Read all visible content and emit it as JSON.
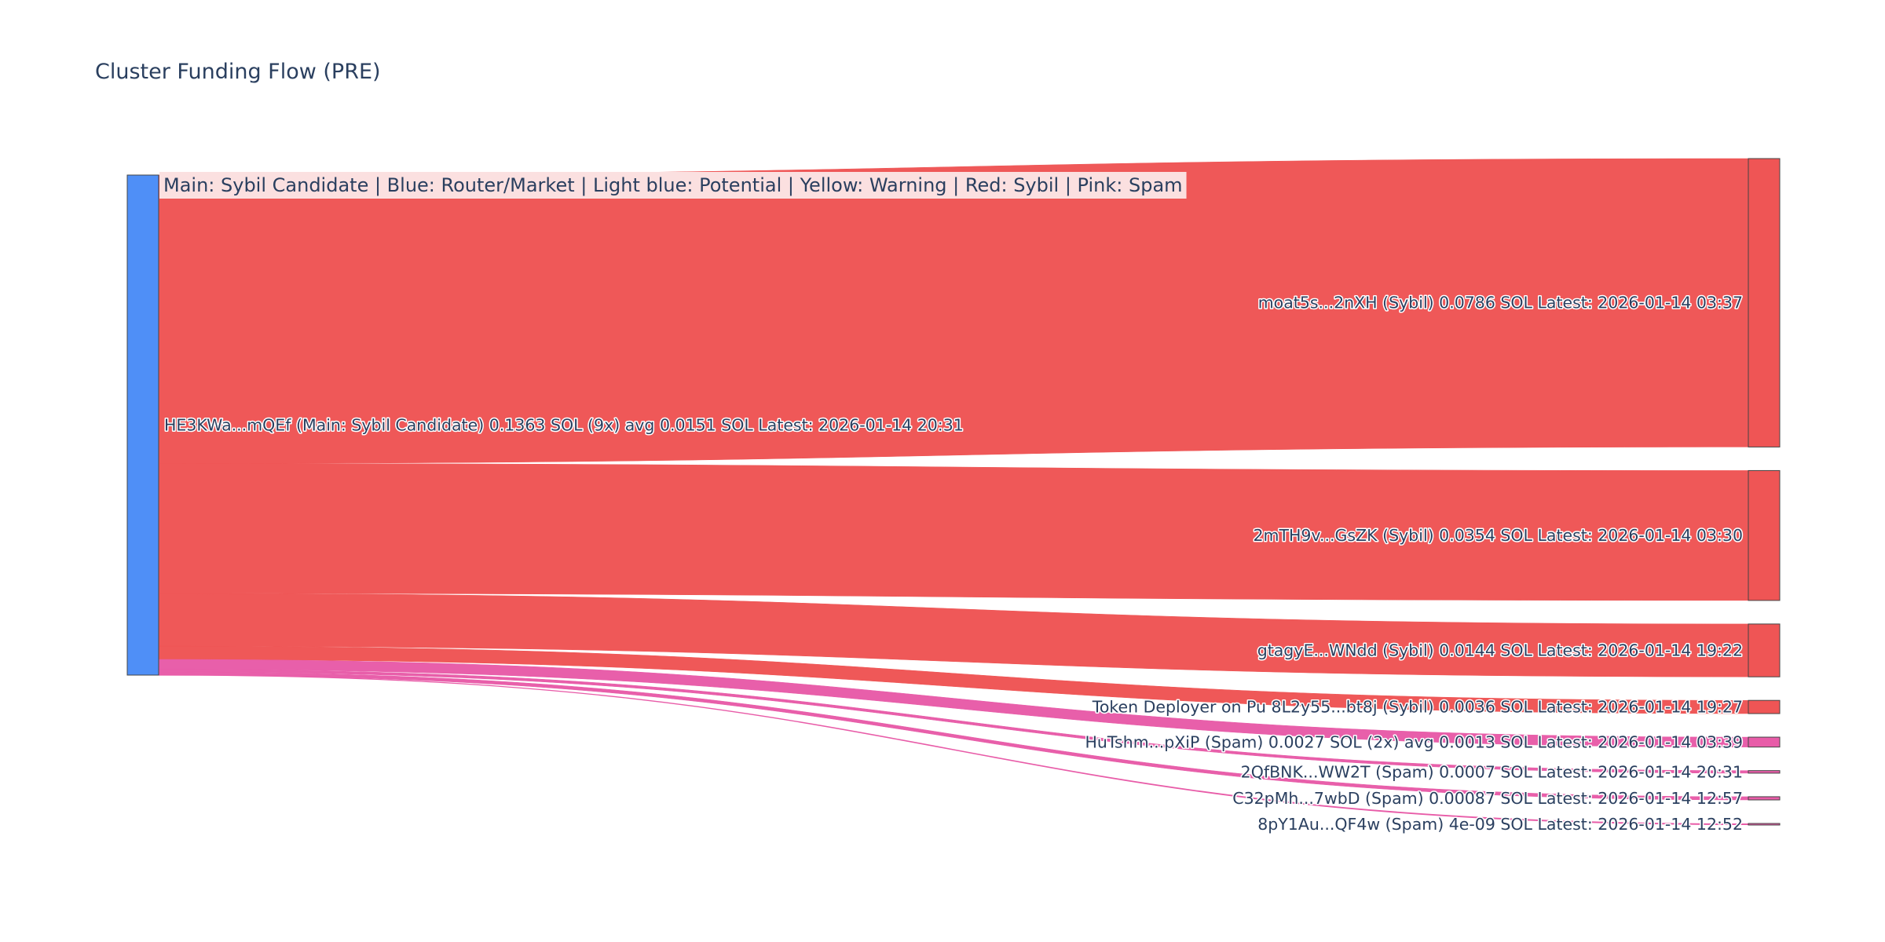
{
  "chart_data": {
    "type": "sankey",
    "title": "Cluster Funding Flow (PRE)",
    "annotation": "Main: Sybil Candidate  |  Blue: Router/Market | Light blue: Potential | Yellow: Warning | Red: Sybil | Pink: Spam",
    "colors": {
      "main": "#4f8ff7",
      "sybil": "#ef5555",
      "spam": "#e85ca8",
      "annotation_bg": "#fbe0e0"
    },
    "source": {
      "label": "HE3KWa...mQEf (Main: Sybil Candidate) 0.1363 SOL (9x) avg 0.0151 SOL Latest: 2026-01-14 20:31",
      "category": "main"
    },
    "targets": [
      {
        "label": "moat5s...2nXH (Sybil) 0.0786 SOL Latest: 2026-01-14 03:37",
        "value": 0.0786,
        "category": "sybil"
      },
      {
        "label": "2mTH9v...GsZK (Sybil) 0.0354 SOL Latest: 2026-01-14 03:30",
        "value": 0.0354,
        "category": "sybil"
      },
      {
        "label": "gtagyE...WNdd (Sybil) 0.0144 SOL Latest: 2026-01-14 19:22",
        "value": 0.0144,
        "category": "sybil"
      },
      {
        "label": "Token Deployer on Pu 8L2y55...bt8j (Sybil) 0.0036 SOL Latest: 2026-01-14 19:27",
        "value": 0.0036,
        "category": "sybil"
      },
      {
        "label": "HuTshm...pXiP (Spam) 0.0027 SOL (2x) avg 0.0013 SOL Latest: 2026-01-14 03:39",
        "value": 0.0027,
        "category": "spam"
      },
      {
        "label": "2QfBNK...WW2T (Spam) 0.0007 SOL Latest: 2026-01-14 20:31",
        "value": 0.0007,
        "category": "spam"
      },
      {
        "label": "C32pMh...7wbD (Spam) 0.00087 SOL Latest: 2026-01-14 12:57",
        "value": 0.00087,
        "category": "spam"
      },
      {
        "label": "8pY1Au...QF4w (Spam) 4e-09 SOL Latest: 2026-01-14 12:52",
        "value": 4e-09,
        "category": "spam"
      }
    ]
  }
}
